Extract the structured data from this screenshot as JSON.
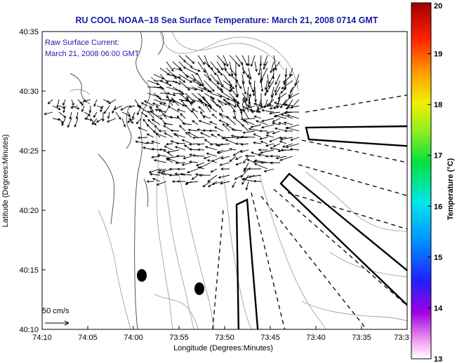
{
  "title": "RU COOL  NOAA–18  Sea Surface Temperature:  March 21, 2008 0714 GMT",
  "annotation": {
    "line1": "Raw Surface Current:",
    "line2": "March 21, 2008 06:00 GMT"
  },
  "scale_label": "50 cm/s",
  "chart_data": {
    "type": "map",
    "xlabel": "Longitude (Degrees:Minutes)",
    "ylabel": "Latitude (Degrees:Minutes)",
    "x_ticks": [
      "74:10",
      "74:05",
      "74:00",
      "73:55",
      "73:50",
      "73:45",
      "73:40",
      "73:35",
      "73:3"
    ],
    "y_ticks": [
      "40:35",
      "40:30",
      "40:25",
      "40:20",
      "40:15",
      "40:10"
    ],
    "colorbar": {
      "label": "Temperature (°C)",
      "ticks": [
        "20",
        "19",
        "18",
        "17",
        "16",
        "15",
        "14",
        "13"
      ],
      "range": [
        13,
        20
      ]
    }
  },
  "colors": {
    "title": "#1a1aa6",
    "coast": "#555555",
    "contour": "#9a9a9a",
    "vectors": "#000000"
  }
}
